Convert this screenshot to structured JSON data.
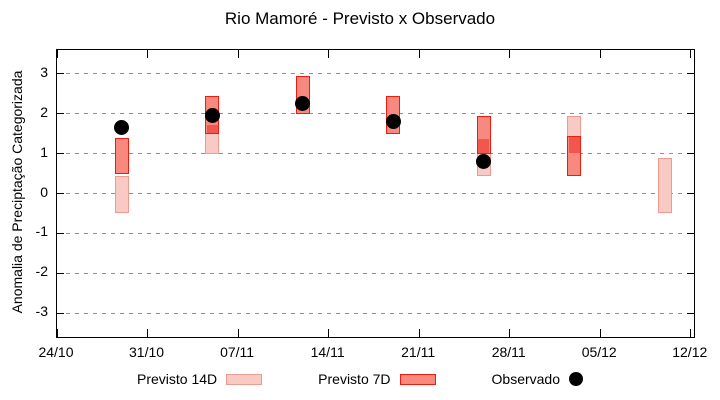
{
  "chart_data": {
    "type": "bar",
    "subtype": "floating-range-bars-with-observed-scatter",
    "title": "Rio Mamoré - Previsto x Observado",
    "xlabel": "",
    "ylabel": "Anomalia de Preciptação Categorizada",
    "ylim": [
      -3.6,
      3.6
    ],
    "ytick_values": [
      3,
      2,
      1,
      0,
      -1,
      -2,
      -3
    ],
    "ytick_labels": [
      "3",
      "2",
      "1",
      "0",
      "-1",
      "-2",
      "-3"
    ],
    "xlim_days": [
      0,
      49.25
    ],
    "xtick_days": [
      0,
      7,
      14,
      21,
      28,
      35,
      42,
      49
    ],
    "xtick_labels": [
      "24/10",
      "31/10",
      "07/11",
      "14/11",
      "21/11",
      "28/11",
      "05/12",
      "12/12"
    ],
    "grid": "horizontal-dashed",
    "grid_color": "#8f8f8f",
    "legend_position": "bottom",
    "overlap_fill": "#f2574e",
    "series": [
      {
        "name": "Previsto 14D",
        "type": "range-bar",
        "fill": "#f9c9c3",
        "border": "#ef9a91",
        "points": [
          {
            "date": "29/10",
            "day": 5,
            "lo": -0.5,
            "hi": 0.45
          },
          {
            "date": "05/11",
            "day": 12,
            "lo": 1.0,
            "hi": 1.75
          },
          {
            "date": "26/11",
            "day": 33,
            "lo": 0.45,
            "hi": 1.4
          },
          {
            "date": "03/12",
            "day": 40,
            "lo": 1.0,
            "hi": 1.95
          },
          {
            "date": "10/12",
            "day": 47,
            "lo": -0.5,
            "hi": 0.9
          }
        ]
      },
      {
        "name": "Previsto 7D",
        "type": "range-bar",
        "fill": "#f8897f",
        "border": "#e71e10",
        "points": [
          {
            "date": "29/10",
            "day": 5,
            "lo": 0.5,
            "hi": 1.4
          },
          {
            "date": "05/11",
            "day": 12,
            "lo": 1.5,
            "hi": 2.45
          },
          {
            "date": "12/11",
            "day": 19,
            "lo": 2.0,
            "hi": 2.95
          },
          {
            "date": "19/11",
            "day": 26,
            "lo": 1.5,
            "hi": 2.45
          },
          {
            "date": "26/11",
            "day": 33,
            "lo": 1.0,
            "hi": 1.95
          },
          {
            "date": "03/12",
            "day": 40,
            "lo": 0.45,
            "hi": 1.45
          }
        ]
      },
      {
        "name": "Observado",
        "type": "scatter",
        "color": "#000000",
        "points": [
          {
            "date": "29/10",
            "day": 5,
            "value": 1.65
          },
          {
            "date": "05/11",
            "day": 12,
            "value": 1.95
          },
          {
            "date": "12/11",
            "day": 19,
            "value": 2.25
          },
          {
            "date": "19/11",
            "day": 26,
            "value": 1.8
          },
          {
            "date": "26/11",
            "day": 33,
            "value": 0.8
          }
        ]
      }
    ]
  }
}
